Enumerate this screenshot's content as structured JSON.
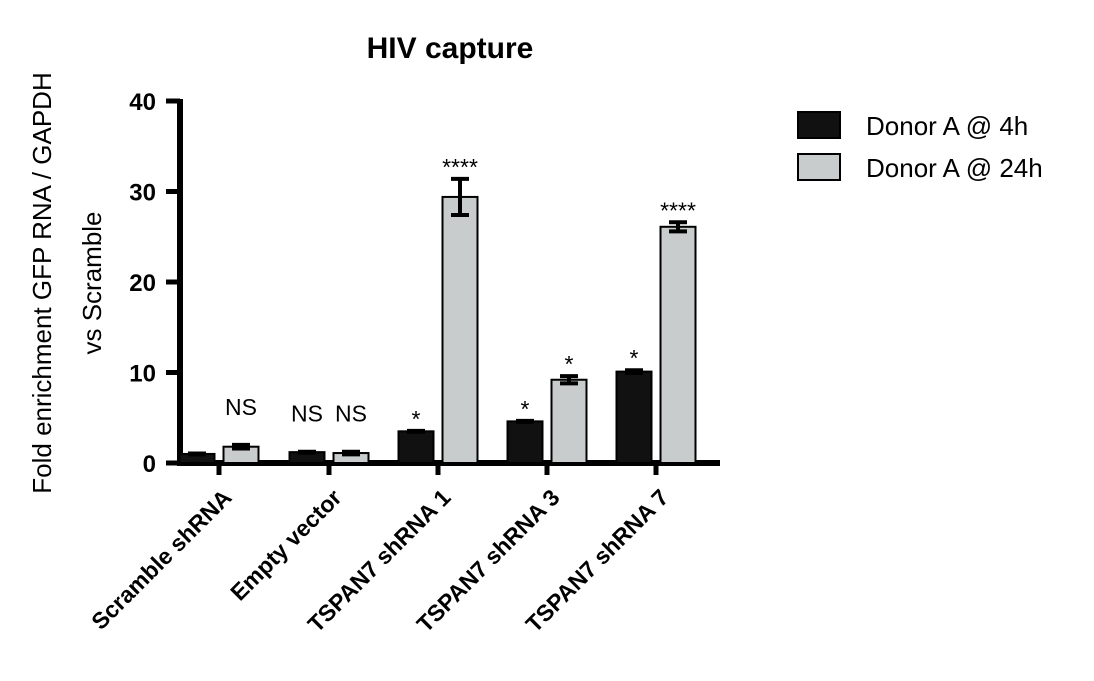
{
  "chart_data": {
    "type": "bar",
    "title": "HIV capture",
    "ylabel": [
      "Fold enrichment GFP  RNA / GAPDH",
      "vs  Scramble"
    ],
    "xlabel": "",
    "ylim": [
      0,
      40
    ],
    "yticks": [
      "0",
      "10",
      "20",
      "30",
      "40"
    ],
    "categories": [
      "Scramble shRNA",
      "Empty vector",
      "TSPAN7 shRNA 1",
      "TSPAN7 shRNA 3",
      "TSPAN7 shRNA 7"
    ],
    "legend_position": "top-right",
    "grid": false,
    "series": [
      {
        "name": "Donor A @ 4h",
        "color": "#111111",
        "values": [
          1.0,
          1.2,
          3.5,
          4.6,
          10.1
        ],
        "errors": [
          0.05,
          0.05,
          0.05,
          0.05,
          0.15
        ],
        "significance": [
          "",
          "NS",
          "*",
          "*",
          "*"
        ]
      },
      {
        "name": "Donor A @ 24h",
        "color": "#c8cccc",
        "values": [
          1.8,
          1.1,
          29.4,
          9.2,
          26.1
        ],
        "errors": [
          0.2,
          0.15,
          2.0,
          0.4,
          0.5
        ],
        "significance": [
          "NS",
          "NS",
          "****",
          "*",
          "****"
        ]
      }
    ]
  }
}
